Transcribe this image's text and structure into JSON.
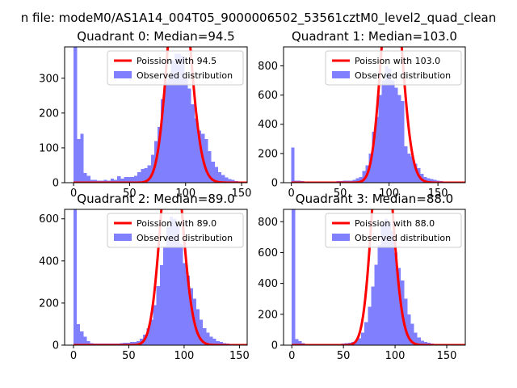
{
  "figure": {
    "suptitle": "n file: modeM0/AS1A14_004T05_9000006502_53561cztM0_level2_quad_clean"
  },
  "colors": {
    "hist": "#8080ff",
    "fit": "#ff0000",
    "axis": "#000000",
    "background": "#ffffff"
  },
  "chart_data": [
    {
      "type": "bar",
      "title": "Quadrant 0: Median=94.5",
      "xlim": [
        -8,
        155
      ],
      "ylim": [
        0,
        390
      ],
      "xticks": [
        0,
        50,
        100,
        150
      ],
      "yticks": [
        0,
        100,
        200,
        300
      ],
      "bin_width": 3,
      "bin_starts": [
        0,
        3,
        6,
        9,
        12,
        15,
        18,
        21,
        24,
        27,
        30,
        33,
        36,
        39,
        42,
        45,
        48,
        51,
        54,
        57,
        60,
        63,
        66,
        69,
        72,
        75,
        78,
        81,
        84,
        87,
        90,
        93,
        96,
        99,
        102,
        105,
        108,
        111,
        114,
        117,
        120,
        123,
        126,
        129,
        132,
        135,
        138,
        141,
        144,
        147
      ],
      "counts": [
        390,
        125,
        140,
        28,
        20,
        8,
        8,
        6,
        6,
        8,
        6,
        12,
        8,
        18,
        12,
        16,
        16,
        16,
        20,
        30,
        40,
        42,
        50,
        80,
        120,
        160,
        240,
        290,
        300,
        350,
        370,
        370,
        365,
        300,
        270,
        225,
        185,
        150,
        140,
        125,
        90,
        60,
        45,
        30,
        22,
        15,
        10,
        8,
        5,
        3
      ],
      "fit": {
        "mean": 94.5,
        "scale": 16250
      },
      "legend": {
        "fit_label": "Poission with 94.5",
        "hist_label": "Observed distribution",
        "loc": "upper right"
      }
    },
    {
      "type": "bar",
      "title": "Quadrant 1: Median=103.0",
      "xlim": [
        -8,
        178
      ],
      "ylim": [
        0,
        930
      ],
      "xticks": [
        0,
        50,
        100,
        150
      ],
      "yticks": [
        0,
        200,
        400,
        600,
        800
      ],
      "bin_width": 3.3,
      "bin_starts": [
        0,
        3.3,
        6.6,
        9.9,
        13.2,
        16.5,
        19.8,
        23.1,
        26.4,
        29.7,
        33,
        36.3,
        39.6,
        42.9,
        46.2,
        49.5,
        52.8,
        56.1,
        59.4,
        62.7,
        66,
        69.3,
        72.6,
        75.9,
        79.2,
        82.5,
        85.8,
        89.1,
        92.4,
        95.7,
        99,
        102.3,
        105.6,
        108.9,
        112.2,
        115.5,
        118.8,
        122.1,
        125.4,
        128.7,
        132,
        135.3,
        138.6,
        141.9,
        145.2,
        148.5,
        151.8,
        155.1,
        158.4,
        161.7
      ],
      "counts": [
        240,
        15,
        15,
        10,
        8,
        8,
        5,
        5,
        5,
        5,
        5,
        5,
        5,
        5,
        10,
        10,
        15,
        15,
        15,
        20,
        30,
        40,
        80,
        120,
        200,
        350,
        450,
        600,
        700,
        800,
        780,
        700,
        650,
        600,
        560,
        250,
        200,
        180,
        130,
        100,
        60,
        40,
        30,
        25,
        20,
        15,
        10,
        8,
        6,
        5
      ],
      "fit": {
        "mean": 103.0,
        "scale": 39400
      },
      "legend": {
        "fit_label": "Poission with 103.0",
        "hist_label": "Observed distribution",
        "loc": "upper right"
      }
    },
    {
      "type": "bar",
      "title": "Quadrant 2: Median=89.0",
      "xlim": [
        -8,
        157
      ],
      "ylim": [
        0,
        645
      ],
      "xticks": [
        0,
        50,
        100,
        150
      ],
      "yticks": [
        0,
        200,
        400,
        600
      ],
      "bin_width": 3,
      "bin_starts": [
        0,
        3,
        6,
        9,
        12,
        15,
        18,
        21,
        24,
        27,
        30,
        33,
        36,
        39,
        42,
        45,
        48,
        51,
        54,
        57,
        60,
        63,
        66,
        69,
        72,
        75,
        78,
        81,
        84,
        87,
        90,
        93,
        96,
        99,
        102,
        105,
        108,
        111,
        114,
        117,
        120,
        123,
        126,
        129,
        132,
        135,
        138,
        141,
        144,
        147
      ],
      "counts": [
        645,
        100,
        65,
        40,
        20,
        10,
        8,
        8,
        8,
        8,
        8,
        8,
        8,
        8,
        10,
        12,
        12,
        15,
        15,
        20,
        30,
        50,
        80,
        120,
        190,
        280,
        380,
        470,
        560,
        610,
        600,
        570,
        480,
        390,
        330,
        270,
        220,
        170,
        120,
        80,
        60,
        40,
        30,
        20,
        15,
        10,
        8,
        5,
        4,
        3
      ],
      "fit": {
        "mean": 89.0,
        "scale": 24500
      },
      "legend": {
        "fit_label": "Poission with 89.0",
        "hist_label": "Observed distribution",
        "loc": "upper right"
      }
    },
    {
      "type": "bar",
      "title": "Quadrant 3: Median=88.0",
      "xlim": [
        -8,
        168
      ],
      "ylim": [
        0,
        880
      ],
      "xticks": [
        0,
        50,
        100,
        150
      ],
      "yticks": [
        0,
        200,
        400,
        600,
        800
      ],
      "bin_width": 3.2,
      "bin_starts": [
        0,
        3.2,
        6.4,
        9.6,
        12.8,
        16,
        19.2,
        22.4,
        25.6,
        28.8,
        32,
        35.2,
        38.4,
        41.6,
        44.8,
        48,
        51.2,
        54.4,
        57.6,
        60.8,
        64,
        67.2,
        70.4,
        73.6,
        76.8,
        80,
        83.2,
        86.4,
        89.6,
        92.8,
        96,
        99.2,
        102.4,
        105.6,
        108.8,
        112,
        115.2,
        118.4,
        121.6,
        124.8,
        128,
        131.2,
        134.4,
        137.6,
        140.8,
        144,
        147.2,
        150.4,
        153.6,
        156.8
      ],
      "counts": [
        880,
        40,
        25,
        12,
        8,
        6,
        5,
        5,
        5,
        5,
        5,
        5,
        5,
        5,
        8,
        10,
        12,
        15,
        20,
        30,
        45,
        80,
        150,
        250,
        380,
        520,
        650,
        790,
        820,
        800,
        740,
        600,
        500,
        420,
        300,
        200,
        140,
        80,
        50,
        30,
        20,
        15,
        10,
        8,
        5,
        4,
        3,
        2,
        2,
        2
      ],
      "fit": {
        "mean": 88.0,
        "scale": 36100
      },
      "legend": {
        "fit_label": "Poission with 88.0",
        "hist_label": "Observed distribution",
        "loc": "upper right"
      }
    }
  ]
}
